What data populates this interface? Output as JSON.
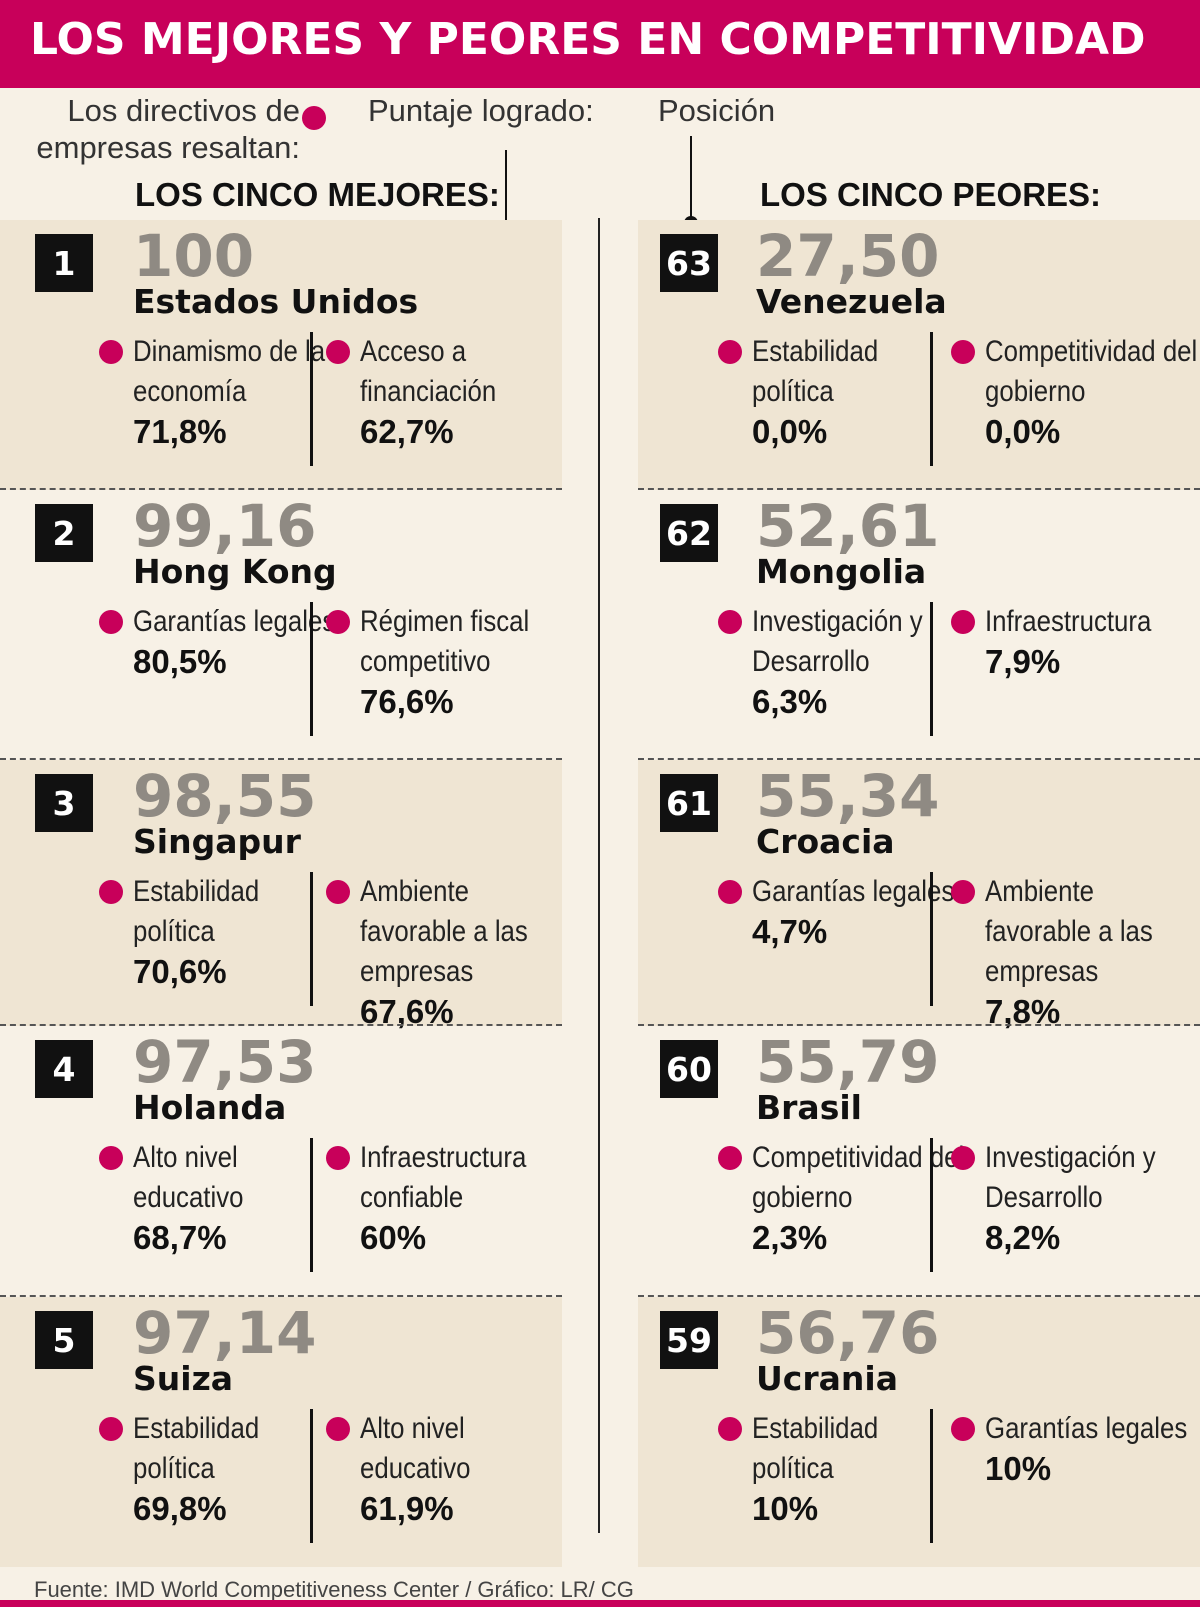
{
  "chart_data": {
    "type": "table",
    "title": "LOS MEJORES Y PEORES EN COMPETITIVIDAD",
    "legend": {
      "indicator": "Los directivos de empresas resaltan:",
      "score": "Puntaje logrado:",
      "position": "Posición"
    },
    "best_title": "LOS CINCO MEJORES:",
    "worst_title": "LOS CINCO PEORES:",
    "best": [
      {
        "rank": "1",
        "score": "100",
        "country": "Estados Unidos",
        "indicators": [
          {
            "label": "Dinamismo de la economía",
            "value": "71,8%"
          },
          {
            "label": "Acceso a financiación",
            "value": "62,7%"
          }
        ]
      },
      {
        "rank": "2",
        "score": "99,16",
        "country": "Hong Kong",
        "indicators": [
          {
            "label": "Garantías legales",
            "value": "80,5%"
          },
          {
            "label": "Régimen fiscal competitivo",
            "value": "76,6%"
          }
        ]
      },
      {
        "rank": "3",
        "score": "98,55",
        "country": "Singapur",
        "indicators": [
          {
            "label": "Estabilidad política",
            "value": "70,6%"
          },
          {
            "label": "Ambiente favorable a las empresas",
            "value": "67,6%"
          }
        ]
      },
      {
        "rank": "4",
        "score": "97,53",
        "country": "Holanda",
        "indicators": [
          {
            "label": "Alto nivel educativo",
            "value": "68,7%"
          },
          {
            "label": "Infraestructura confiable",
            "value": "60%"
          }
        ]
      },
      {
        "rank": "5",
        "score": "97,14",
        "country": "Suiza",
        "indicators": [
          {
            "label": "Estabilidad política",
            "value": "69,8%"
          },
          {
            "label": "Alto nivel educativo",
            "value": "61,9%"
          }
        ]
      }
    ],
    "worst": [
      {
        "rank": "63",
        "score": "27,50",
        "country": "Venezuela",
        "indicators": [
          {
            "label": "Estabilidad política",
            "value": "0,0%"
          },
          {
            "label": "Competitividad del gobierno",
            "value": "0,0%"
          }
        ]
      },
      {
        "rank": "62",
        "score": "52,61",
        "country": "Mongolia",
        "indicators": [
          {
            "label": "Investigación y Desarrollo",
            "value": "6,3%"
          },
          {
            "label": "Infraestructura",
            "value": "7,9%"
          }
        ]
      },
      {
        "rank": "61",
        "score": "55,34",
        "country": "Croacia",
        "indicators": [
          {
            "label": "Garantías legales",
            "value": "4,7%"
          },
          {
            "label": "Ambiente favorable a las empresas",
            "value": "7,8%"
          }
        ]
      },
      {
        "rank": "60",
        "score": "55,79",
        "country": "Brasil",
        "indicators": [
          {
            "label": "Competitividad del gobierno",
            "value": "2,3%"
          },
          {
            "label": "Investigación y Desarrollo",
            "value": "8,2%"
          }
        ]
      },
      {
        "rank": "59",
        "score": "56,76",
        "country": "Ucrania",
        "indicators": [
          {
            "label": "Estabilidad política",
            "value": "10%"
          },
          {
            "label": "Garantías legales",
            "value": "10%"
          }
        ]
      }
    ],
    "source": "Fuente: IMD World Competitiveness Center / Gráfico: LR/ CG"
  },
  "colors": {
    "accent": "#c8005a",
    "panel": "#efe5d3",
    "background": "#f7f1e6",
    "score": "#8f8a83"
  }
}
